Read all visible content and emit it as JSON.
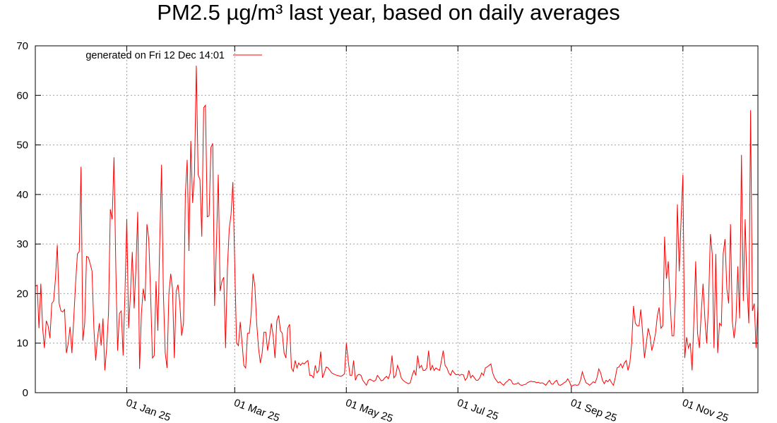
{
  "chart_data": {
    "type": "line",
    "title": "PM2.5 µg/m³ last year, based on daily averages",
    "xlabel": "",
    "ylabel": "",
    "ylim": [
      0,
      70
    ],
    "xlim": [
      "2024-11-12",
      "2025-12-12"
    ],
    "y_ticks": [
      "0",
      "10",
      "20",
      "30",
      "40",
      "50",
      "60",
      "70"
    ],
    "x_ticks": [
      {
        "date": "2025-01-01",
        "label": "01 Jan 25"
      },
      {
        "date": "2025-03-01",
        "label": "01 Mar 25"
      },
      {
        "date": "2025-05-01",
        "label": "01 May 25"
      },
      {
        "date": "2025-07-01",
        "label": "01 Jul 25"
      },
      {
        "date": "2025-09-01",
        "label": "01 Sep 25"
      },
      {
        "date": "2025-11-01",
        "label": "01 Nov 25"
      }
    ],
    "grid": true,
    "legend": {
      "position": "top-left",
      "text": "generated on Fri 12 Dec 14:01"
    },
    "series_color": "#ff0000",
    "daily_values_by_month": {
      "2024-11": [
        null,
        null,
        null,
        null,
        null,
        null,
        null,
        null,
        null,
        null,
        null,
        21.5,
        21.7,
        13,
        22,
        13,
        9,
        14.5,
        13.5,
        11,
        18,
        18.5,
        23,
        29.8,
        18,
        16.5,
        16.3,
        16.8,
        8,
        10
      ],
      "2024-12": [
        13.3,
        8,
        15,
        22,
        28,
        28.5,
        45.6,
        10.5,
        14,
        27.5,
        27.3,
        26,
        24.5,
        13,
        6.5,
        11,
        14,
        9.5,
        15,
        4.5,
        9,
        16,
        37,
        35,
        47.5,
        25,
        8.5,
        16,
        16.5,
        7.5,
        20
      ],
      "2025-01": [
        35,
        13,
        20,
        28.4,
        17,
        25,
        36.5,
        4.8,
        16,
        21,
        18.5,
        34,
        31,
        20,
        7,
        7.5,
        22.5,
        12.5,
        30,
        46,
        20,
        8,
        5,
        20,
        24,
        21,
        7,
        20.5,
        21.8,
        18,
        11.5
      ],
      "2025-02": [
        14,
        40,
        47,
        28.6,
        50.8,
        38.3,
        44,
        66,
        44,
        43,
        31.5,
        57.5,
        58,
        35.5,
        35.7,
        49.5,
        50.3,
        17.5,
        30,
        44,
        20.5,
        22.5,
        23.3,
        9,
        25,
        33,
        36,
        42.5
      ],
      "2025-03": [
        26,
        10,
        9.5,
        14.3,
        10,
        5.5,
        5,
        12,
        12,
        16,
        24,
        21.5,
        14,
        9,
        6,
        8,
        12.2,
        12.2,
        8.5,
        11,
        14,
        11.5,
        7,
        14.5,
        15.6,
        12.5,
        12,
        8,
        7,
        13,
        13.8
      ],
      "2025-04": [
        5,
        4.3,
        6.5,
        5,
        6,
        5.5,
        6,
        5.8,
        6.2,
        6.5,
        3.5,
        3.5,
        3,
        5.5,
        4,
        4.5,
        8.3,
        3,
        4,
        5.2,
        5,
        4.5,
        4,
        3.8,
        3.6,
        3.5,
        3.4,
        3.3,
        3.5,
        3.8
      ],
      "2025-05": [
        10,
        6.5,
        3.5,
        3.5,
        6.5,
        2.5,
        3.5,
        3.7,
        3.5,
        2.5,
        2,
        1.5,
        2.5,
        2.7,
        2.5,
        2.3,
        2.5,
        3.5,
        3,
        2.4,
        2.5,
        3,
        3.3,
        2.8,
        4,
        7.5,
        3,
        3.5,
        5.5,
        4.5,
        3
      ],
      "2025-06": [
        2.5,
        2.2,
        2,
        1.8,
        2,
        3.5,
        4.5,
        3.5,
        7.5,
        5,
        5.5,
        4.5,
        4.5,
        5,
        8.5,
        4.5,
        5.5,
        4.5,
        5,
        4.7,
        4.5,
        6.5,
        8.5,
        5.5,
        5,
        4,
        3.5,
        4.5,
        4,
        3.6
      ],
      "2025-07": [
        3.7,
        3.5,
        3.7,
        3.6,
        2.5,
        3,
        4.5,
        3,
        3.5,
        3,
        2.5,
        2.5,
        3,
        4,
        3.5,
        5,
        5.2,
        5.5,
        5.8,
        4,
        3,
        2.5,
        2,
        2.2,
        1.8,
        1.5,
        2,
        2.3,
        2.7,
        2.5,
        1.8
      ],
      "2025-08": [
        1.7,
        1.8,
        2,
        1.6,
        1.5,
        1.6,
        1.7,
        2,
        2.2,
        2.3,
        2.2,
        2.2,
        2,
        2.1,
        1.9,
        2,
        1.8,
        1.5,
        2,
        2.5,
        1.8,
        1.7,
        2.2,
        2.5,
        1.6,
        1.5,
        1.7,
        2,
        2.2,
        2.8,
        2.2
      ],
      "2025-09": [
        1.2,
        1.5,
        1.6,
        1.5,
        1.6,
        2.5,
        4.2,
        3,
        2,
        1.8,
        1.5,
        1.8,
        2.2,
        2,
        3,
        4.8,
        4,
        2.5,
        1.8,
        2.5,
        2.2,
        2.7,
        2,
        1.5,
        3,
        5,
        5.2,
        5.8,
        5,
        6
      ],
      "2025-10": [
        6.5,
        4.5,
        6,
        10,
        17.5,
        14,
        13.5,
        13.5,
        16.8,
        12,
        7,
        10,
        13,
        11.5,
        8.5,
        10,
        12,
        15.5,
        17.2,
        13,
        13.5,
        31.5,
        23,
        26.5,
        18,
        11.5,
        11.5,
        20,
        38,
        24.5,
        35
      ],
      "2025-11": [
        44,
        7,
        11.2,
        9,
        10,
        4.5,
        15,
        26.5,
        12,
        9,
        16,
        22,
        15,
        10,
        18,
        32,
        28,
        9,
        28,
        8,
        14,
        13.5,
        28,
        31,
        21,
        18,
        34,
        14.5,
        11,
        14.5
      ],
      "2025-12": [
        25.5,
        15,
        48,
        18.5,
        35,
        21.5,
        14,
        57,
        16.5,
        18,
        9,
        17.5
      ]
    }
  }
}
